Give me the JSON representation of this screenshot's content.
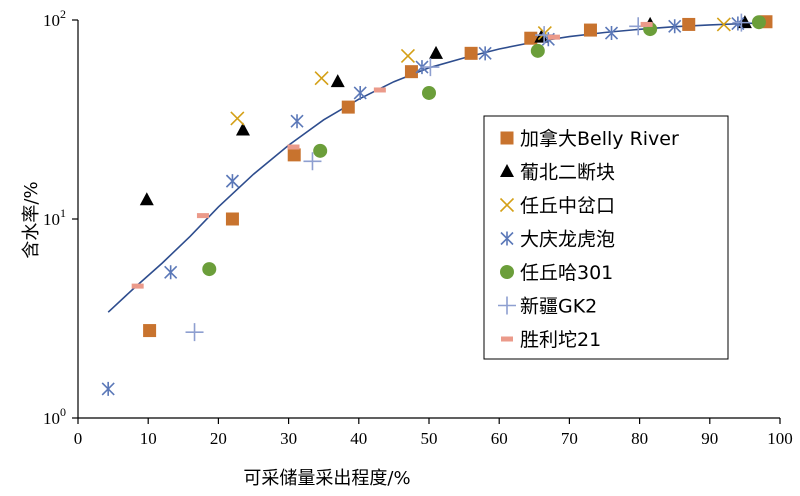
{
  "chart_data": {
    "type": "scatter",
    "xlabel": "可采储量采出程度/%",
    "ylabel": "含水率/%",
    "xlim": [
      0,
      100
    ],
    "ylim": [
      1,
      100
    ],
    "y_scale": "log",
    "x_ticks": [
      "0",
      "10",
      "20",
      "30",
      "40",
      "50",
      "60",
      "70",
      "80",
      "90",
      "100"
    ],
    "y_ticks": [
      {
        "base": "10",
        "exp": "0",
        "value": 1
      },
      {
        "base": "10",
        "exp": "1",
        "value": 10
      },
      {
        "base": "10",
        "exp": "2",
        "value": 100
      }
    ],
    "legend_position": "right",
    "series": [
      {
        "name": "加拿大Belly River",
        "marker": "square",
        "color": "#C8732E",
        "points": [
          [
            10.2,
            2.75
          ],
          [
            22.0,
            10.0
          ],
          [
            30.8,
            21.0
          ],
          [
            38.5,
            36.5
          ],
          [
            47.5,
            55.0
          ],
          [
            56.0,
            68.0
          ],
          [
            64.5,
            81.0
          ],
          [
            73.0,
            89.0
          ],
          [
            87.0,
            95.0
          ],
          [
            98.0,
            98.0
          ]
        ]
      },
      {
        "name": "葡北二断块",
        "marker": "triangle",
        "color": "#000000",
        "points": [
          [
            9.8,
            12.5
          ],
          [
            23.5,
            28.0
          ],
          [
            37.0,
            49.0
          ],
          [
            51.0,
            68.0
          ],
          [
            66.0,
            82.0
          ],
          [
            81.5,
            95.0
          ],
          [
            95.0,
            97.0
          ]
        ]
      },
      {
        "name": "任丘中岔口",
        "marker": "x",
        "color": "#D4A017",
        "points": [
          [
            22.7,
            32.0
          ],
          [
            34.7,
            51.0
          ],
          [
            47.0,
            66.0
          ],
          [
            66.5,
            86.0
          ],
          [
            92.0,
            95.0
          ]
        ]
      },
      {
        "name": "大庆龙虎泡",
        "marker": "asterisk",
        "color": "#5B78B8",
        "points": [
          [
            4.3,
            1.4
          ],
          [
            13.2,
            5.4
          ],
          [
            22.0,
            15.5
          ],
          [
            31.2,
            31.0
          ],
          [
            40.2,
            43.0
          ],
          [
            49.0,
            58.0
          ],
          [
            58.0,
            68.0
          ],
          [
            67.0,
            80.0
          ],
          [
            76.0,
            86.0
          ],
          [
            85.0,
            93.0
          ],
          [
            94.0,
            96.0
          ]
        ]
      },
      {
        "name": "任丘哈301",
        "marker": "circle",
        "color": "#6B9E3A",
        "points": [
          [
            18.7,
            5.6
          ],
          [
            34.5,
            22.0
          ],
          [
            50.0,
            43.0
          ],
          [
            65.5,
            70.0
          ],
          [
            81.5,
            90.0
          ],
          [
            97.0,
            97.5
          ]
        ]
      },
      {
        "name": "新疆GK2",
        "marker": "plus",
        "color": "#8E9FD0",
        "points": [
          [
            16.6,
            2.7
          ],
          [
            33.4,
            19.5
          ],
          [
            50.2,
            58.0
          ],
          [
            66.4,
            84.0
          ],
          [
            79.8,
            93.0
          ],
          [
            94.5,
            97.0
          ]
        ]
      },
      {
        "name": "胜利坨21",
        "marker": "dash",
        "color": "#EB9A8A",
        "points": [
          [
            8.5,
            4.6
          ],
          [
            17.8,
            10.4
          ],
          [
            30.7,
            23.0
          ],
          [
            43.0,
            44.5
          ],
          [
            67.8,
            82.0
          ],
          [
            81.0,
            95.0
          ]
        ]
      }
    ],
    "fit_curve": {
      "color": "#2E4D8E",
      "points": [
        [
          4.3,
          3.4
        ],
        [
          8,
          4.5
        ],
        [
          12,
          6.0
        ],
        [
          16,
          8.2
        ],
        [
          20,
          11.5
        ],
        [
          25,
          16.8
        ],
        [
          30,
          23.5
        ],
        [
          35,
          31.5
        ],
        [
          40,
          40.0
        ],
        [
          45,
          49.0
        ],
        [
          50,
          57.5
        ],
        [
          55,
          64.5
        ],
        [
          60,
          71.5
        ],
        [
          65,
          77.5
        ],
        [
          70,
          82.5
        ],
        [
          75,
          86.5
        ],
        [
          80,
          89.8
        ],
        [
          85,
          92.5
        ],
        [
          90,
          94.5
        ],
        [
          95,
          96.0
        ],
        [
          98,
          96.8
        ]
      ]
    }
  }
}
